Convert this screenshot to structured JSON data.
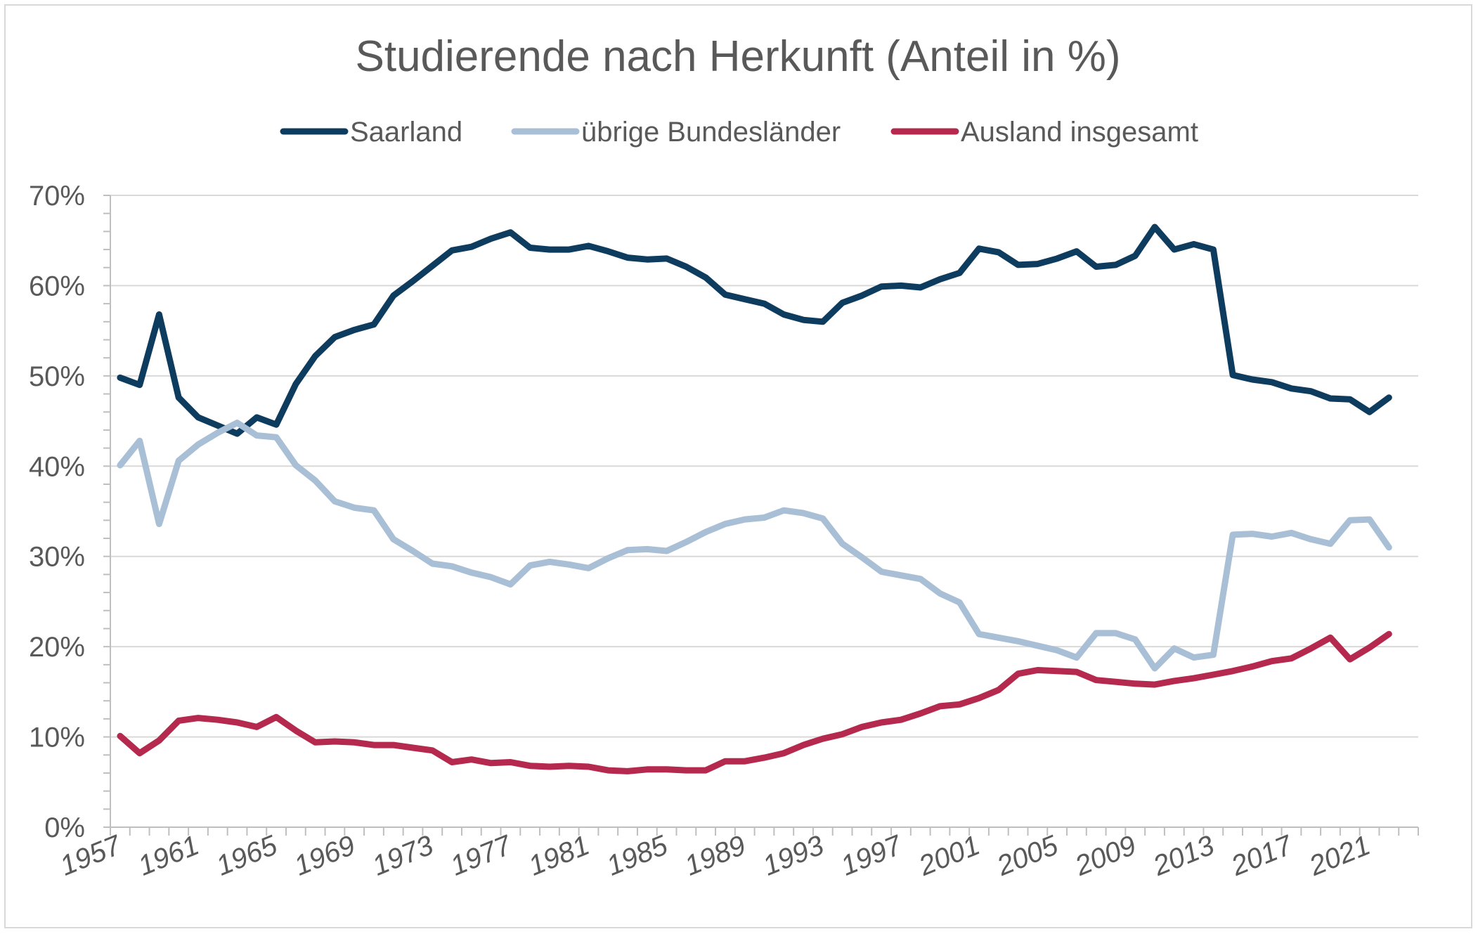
{
  "chart_data": {
    "type": "line",
    "title": "Studierende nach Herkunft (Anteil in %)",
    "xlabel": "",
    "ylabel": "",
    "x": [
      1957,
      1958,
      1959,
      1960,
      1961,
      1962,
      1963,
      1964,
      1965,
      1966,
      1967,
      1968,
      1969,
      1970,
      1971,
      1972,
      1973,
      1974,
      1975,
      1976,
      1977,
      1978,
      1979,
      1980,
      1981,
      1982,
      1983,
      1984,
      1985,
      1986,
      1987,
      1988,
      1989,
      1990,
      1991,
      1992,
      1993,
      1994,
      1995,
      1996,
      1997,
      1998,
      1999,
      2000,
      2001,
      2002,
      2003,
      2004,
      2005,
      2006,
      2007,
      2008,
      2009,
      2010,
      2011,
      2012,
      2013,
      2014,
      2015,
      2016,
      2017,
      2018,
      2019,
      2020,
      2021,
      2022,
      2023
    ],
    "x_tick_labels": [
      "1957",
      "1961",
      "1965",
      "1969",
      "1973",
      "1977",
      "1981",
      "1985",
      "1989",
      "1993",
      "1997",
      "2001",
      "2005",
      "2009",
      "2013",
      "2017",
      "2021"
    ],
    "x_tick_years": [
      1957,
      1961,
      1965,
      1969,
      1973,
      1977,
      1981,
      1985,
      1989,
      1993,
      1997,
      2001,
      2005,
      2009,
      2013,
      2017,
      2021
    ],
    "xlim": [
      1956.5,
      2023.5
    ],
    "ylim": [
      0,
      70
    ],
    "y_ticks": [
      0,
      10,
      20,
      30,
      40,
      50,
      60,
      70
    ],
    "y_tick_labels": [
      "0%",
      "10%",
      "20%",
      "30%",
      "40%",
      "50%",
      "60%",
      "70%"
    ],
    "grid": true,
    "legend": "top",
    "series": [
      {
        "name": "Saarland",
        "color": "#0e3c5f",
        "values": [
          49.8,
          49.0,
          56.8,
          47.6,
          45.4,
          44.5,
          43.6,
          45.4,
          44.6,
          49.1,
          52.2,
          54.3,
          55.1,
          55.7,
          58.9,
          60.5,
          62.2,
          63.9,
          64.3,
          65.2,
          65.9,
          64.2,
          64.0,
          64.0,
          64.4,
          63.8,
          63.1,
          62.9,
          63.0,
          62.1,
          60.9,
          59.0,
          58.5,
          58.0,
          56.8,
          56.2,
          56.0,
          58.1,
          58.9,
          59.9,
          60.0,
          59.8,
          60.7,
          61.4,
          64.1,
          63.7,
          62.3,
          62.4,
          63.0,
          63.8,
          62.1,
          62.3,
          63.3,
          66.5,
          64.0,
          64.6,
          64.0,
          50.1,
          49.6,
          49.3,
          48.6,
          48.3,
          47.5,
          47.4,
          46.0,
          47.6,
          null
        ]
      },
      {
        "name": "übrige Bundesländer",
        "color": "#a8bfd6",
        "values": [
          40.1,
          42.8,
          33.6,
          40.6,
          42.4,
          43.7,
          44.8,
          43.4,
          43.2,
          40.1,
          38.4,
          36.1,
          35.4,
          35.1,
          31.9,
          30.6,
          29.2,
          28.9,
          28.2,
          27.7,
          26.9,
          29.0,
          29.4,
          29.1,
          28.7,
          29.8,
          30.7,
          30.8,
          30.6,
          31.6,
          32.7,
          33.6,
          34.1,
          34.3,
          35.1,
          34.8,
          34.2,
          31.4,
          29.9,
          28.3,
          27.9,
          27.5,
          25.9,
          24.9,
          21.4,
          21.0,
          20.6,
          20.1,
          19.6,
          18.8,
          21.5,
          21.5,
          20.8,
          17.6,
          19.8,
          18.8,
          19.1,
          32.4,
          32.5,
          32.2,
          32.6,
          31.9,
          31.4,
          34.0,
          34.1,
          31.0,
          null
        ]
      },
      {
        "name": "Ausland insgesamt",
        "color": "#b5294e",
        "values": [
          10.1,
          8.2,
          9.6,
          11.8,
          12.1,
          11.9,
          11.6,
          11.1,
          12.2,
          10.7,
          9.4,
          9.5,
          9.4,
          9.1,
          9.1,
          8.8,
          8.5,
          7.2,
          7.5,
          7.1,
          7.2,
          6.8,
          6.7,
          6.8,
          6.7,
          6.3,
          6.2,
          6.4,
          6.4,
          6.3,
          6.3,
          7.3,
          7.3,
          7.7,
          8.2,
          9.1,
          9.8,
          10.3,
          11.1,
          11.6,
          11.9,
          12.6,
          13.4,
          13.6,
          14.3,
          15.2,
          17.0,
          17.4,
          17.3,
          17.2,
          16.3,
          16.1,
          15.9,
          15.8,
          16.2,
          16.5,
          16.9,
          17.3,
          17.8,
          18.4,
          18.7,
          19.8,
          21.0,
          18.6,
          19.9,
          21.4,
          null
        ]
      }
    ]
  }
}
